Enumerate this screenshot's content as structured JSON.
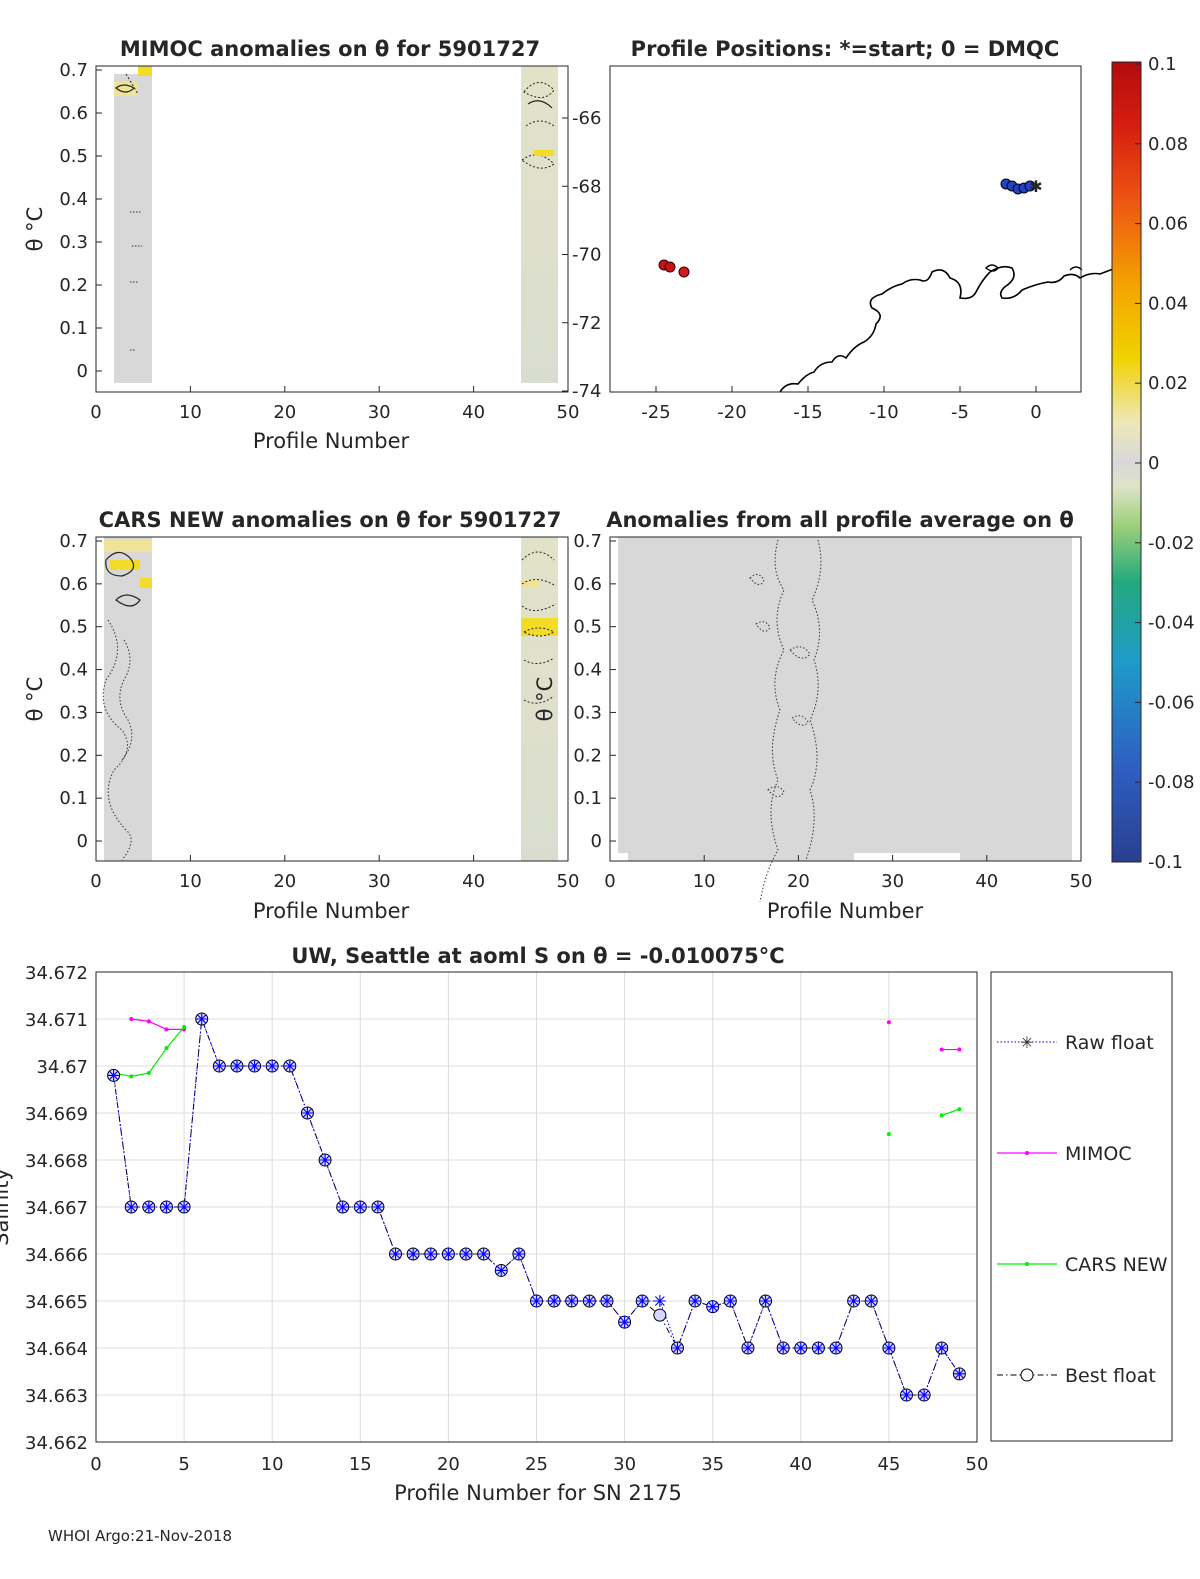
{
  "footer": "WHOI Argo:21-Nov-2018",
  "colorbar": {
    "ticks": [
      "0.1",
      "0.08",
      "0.06",
      "0.04",
      "0.02",
      "0",
      "-0.02",
      "-0.04",
      "-0.06",
      "-0.08",
      "-0.1"
    ],
    "range": [
      -0.1,
      0.1
    ]
  },
  "panels": {
    "mimoc": {
      "title": "MIMOC anomalies on θ  for 5901727",
      "xlabel": "Profile Number",
      "ylabel": "θ °C",
      "xticks": [
        "0",
        "10",
        "20",
        "30",
        "40",
        "50"
      ],
      "yticks": [
        "0.7",
        "0.6",
        "0.5",
        "0.4",
        "0.3",
        "0.2",
        "0.1",
        "0"
      ]
    },
    "positions": {
      "title": "Profile Positions: *=start; 0 = DMQC",
      "xticks": [
        "-25",
        "-20",
        "-15",
        "-10",
        "-5",
        "0"
      ],
      "yticks": [
        "-66",
        "-68",
        "-70",
        "-72",
        "-74"
      ]
    },
    "cars": {
      "title": "CARS NEW anomalies on θ for 5901727",
      "xlabel": "Profile Number",
      "ylabel": "θ °C",
      "xticks": [
        "0",
        "10",
        "20",
        "30",
        "40",
        "50"
      ],
      "yticks": [
        "0.7",
        "0.6",
        "0.5",
        "0.4",
        "0.3",
        "0.2",
        "0.1",
        "0"
      ]
    },
    "allavg": {
      "title": "Anomalies from all profile average on θ",
      "xlabel": "Profile Number",
      "ylabel": "θ °C",
      "xticks": [
        "0",
        "10",
        "20",
        "30",
        "40",
        "50"
      ],
      "yticks": [
        "0.7",
        "0.6",
        "0.5",
        "0.4",
        "0.3",
        "0.2",
        "0.1",
        "0"
      ]
    }
  },
  "chart_data": {
    "type": "line",
    "title": "UW, Seattle at aoml S on θ = -0.010075°C",
    "xlabel": "Profile Number for SN 2175",
    "ylabel": "Salinity",
    "xlim": [
      0,
      50
    ],
    "ylim": [
      34.662,
      34.672
    ],
    "xticks": [
      "0",
      "5",
      "10",
      "15",
      "20",
      "25",
      "30",
      "35",
      "40",
      "45",
      "50"
    ],
    "yticks": [
      "34.672",
      "34.671",
      "34.67",
      "34.669",
      "34.668",
      "34.667",
      "34.666",
      "34.665",
      "34.664",
      "34.663",
      "34.662"
    ],
    "legend": [
      "Raw float",
      "MIMOC",
      "CARS NEW",
      "Best float"
    ],
    "series": [
      {
        "name": "Raw float",
        "x": [
          1,
          2,
          3,
          4,
          5,
          6,
          7,
          8,
          9,
          10,
          11,
          12,
          13,
          14,
          15,
          16,
          17,
          18,
          19,
          20,
          21,
          22,
          23,
          24,
          25,
          26,
          27,
          28,
          29,
          30,
          31,
          32,
          33,
          34,
          35,
          36,
          37,
          38,
          39,
          40,
          41,
          42,
          43,
          44,
          45,
          46,
          47,
          48,
          49
        ],
        "values": [
          34.6698,
          34.667,
          34.667,
          34.667,
          34.667,
          34.671,
          34.67,
          34.67,
          34.67,
          34.67,
          34.67,
          34.669,
          34.668,
          34.667,
          34.667,
          34.667,
          34.666,
          34.666,
          34.666,
          34.666,
          34.666,
          34.666,
          34.66565,
          34.666,
          34.665,
          34.665,
          34.665,
          34.665,
          34.665,
          34.66455,
          34.665,
          34.665,
          34.664,
          34.665,
          34.66488,
          34.665,
          34.664,
          34.665,
          34.664,
          34.664,
          34.664,
          34.664,
          34.665,
          34.665,
          34.664,
          34.663,
          34.663,
          34.664,
          34.66345
        ]
      },
      {
        "name": "Best float",
        "x": [
          1,
          2,
          3,
          4,
          5,
          6,
          7,
          8,
          9,
          10,
          11,
          12,
          13,
          14,
          15,
          16,
          17,
          18,
          19,
          20,
          21,
          22,
          23,
          24,
          25,
          26,
          27,
          28,
          29,
          30,
          31,
          32,
          33,
          34,
          35,
          36,
          37,
          38,
          39,
          40,
          41,
          42,
          43,
          44,
          45,
          46,
          47,
          48,
          49
        ],
        "values": [
          34.6698,
          34.667,
          34.667,
          34.667,
          34.667,
          34.671,
          34.67,
          34.67,
          34.67,
          34.67,
          34.67,
          34.669,
          34.668,
          34.667,
          34.667,
          34.667,
          34.666,
          34.666,
          34.666,
          34.666,
          34.666,
          34.666,
          34.66565,
          34.666,
          34.665,
          34.665,
          34.665,
          34.665,
          34.665,
          34.66455,
          34.665,
          34.6647,
          34.664,
          34.665,
          34.66488,
          34.665,
          34.664,
          34.665,
          34.664,
          34.664,
          34.664,
          34.664,
          34.665,
          34.665,
          34.664,
          34.663,
          34.663,
          34.664,
          34.66345
        ]
      },
      {
        "name": "MIMOC",
        "segments": [
          {
            "x": [
              2,
              3,
              4,
              5
            ],
            "values": [
              34.671,
              34.67095,
              34.67078,
              34.67078
            ]
          },
          {
            "x": [
              45
            ],
            "values": [
              34.67093
            ]
          },
          {
            "x": [
              48,
              49
            ],
            "values": [
              34.67035,
              34.67035
            ]
          }
        ]
      },
      {
        "name": "CARS NEW",
        "segments": [
          {
            "x": [
              1,
              2,
              3,
              4,
              5
            ],
            "values": [
              34.66985,
              34.66978,
              34.66985,
              34.67038,
              34.67083
            ]
          },
          {
            "x": [
              45
            ],
            "values": [
              34.66855
            ]
          },
          {
            "x": [
              48,
              49
            ],
            "values": [
              34.66895,
              34.66908
            ]
          }
        ]
      }
    ]
  }
}
